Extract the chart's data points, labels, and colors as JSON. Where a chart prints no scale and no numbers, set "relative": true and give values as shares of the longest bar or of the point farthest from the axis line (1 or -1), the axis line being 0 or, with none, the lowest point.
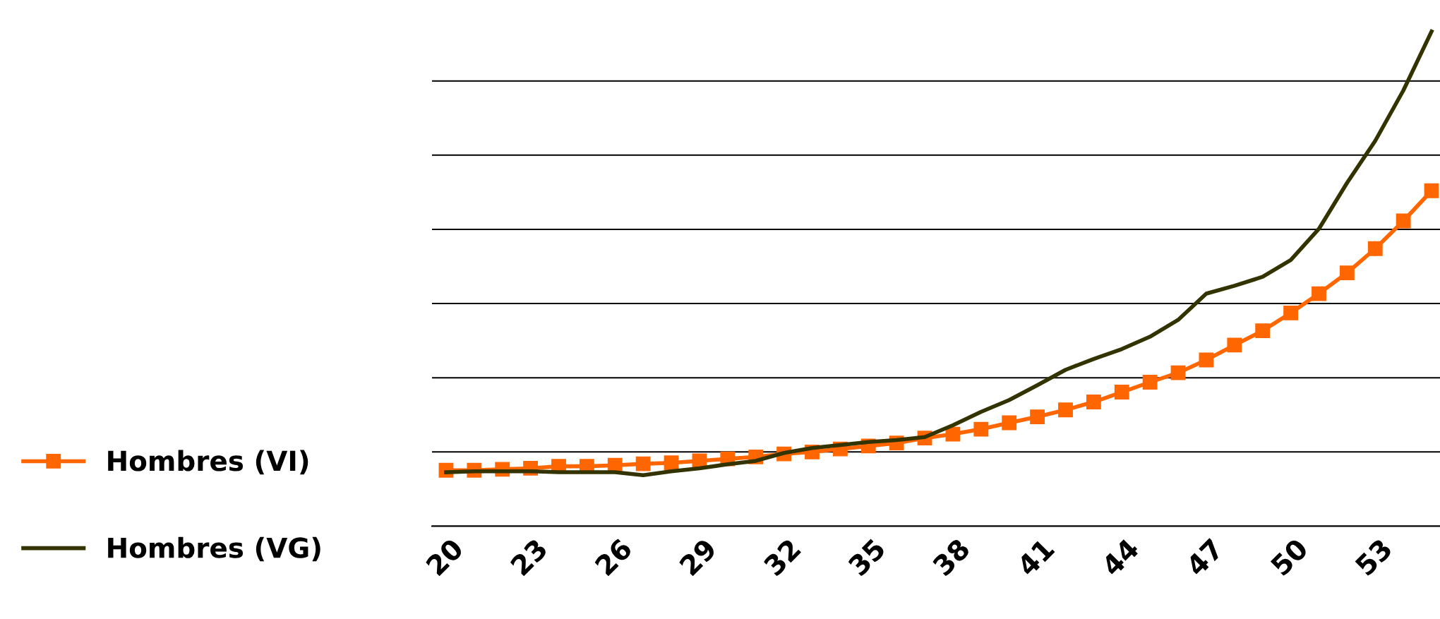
{
  "chart_data": {
    "type": "line",
    "relative": true,
    "grid": "y",
    "legend": "left",
    "categories": [
      "20",
      null,
      null,
      "23",
      null,
      null,
      "26",
      null,
      null,
      "29",
      null,
      null,
      "32",
      null,
      null,
      "35",
      null,
      null,
      "38",
      null,
      null,
      "41",
      null,
      null,
      "44",
      null,
      null,
      "47",
      null,
      null,
      "50",
      null,
      null,
      "53",
      null,
      null
    ],
    "series": [
      {
        "name": "Hombres (VI)",
        "color": "#ff6600",
        "marker": "square",
        "values": [
          0.113,
          0.113,
          0.115,
          0.117,
          0.121,
          0.121,
          0.123,
          0.126,
          0.128,
          0.132,
          0.136,
          0.14,
          0.146,
          0.15,
          0.156,
          0.162,
          0.168,
          0.178,
          0.186,
          0.196,
          0.209,
          0.221,
          0.235,
          0.251,
          0.271,
          0.291,
          0.31,
          0.336,
          0.366,
          0.395,
          0.431,
          0.47,
          0.512,
          0.561,
          0.617,
          0.678
        ]
      },
      {
        "name": "Hombres (VG)",
        "color": "#333300",
        "marker": "none",
        "values": [
          0.109,
          0.111,
          0.111,
          0.111,
          0.109,
          0.109,
          0.109,
          0.103,
          0.111,
          0.117,
          0.125,
          0.132,
          0.148,
          0.158,
          0.164,
          0.17,
          0.174,
          0.18,
          0.204,
          0.231,
          0.255,
          0.285,
          0.316,
          0.338,
          0.358,
          0.383,
          0.417,
          0.47,
          0.486,
          0.504,
          0.538,
          0.601,
          0.694,
          0.779,
          0.881,
          1.0
        ]
      }
    ]
  }
}
